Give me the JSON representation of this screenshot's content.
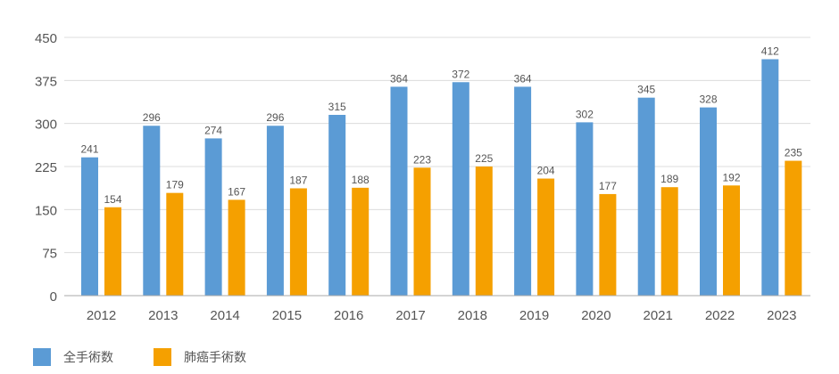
{
  "chart_data": {
    "type": "bar",
    "categories": [
      "2012",
      "2013",
      "2014",
      "2015",
      "2016",
      "2017",
      "2018",
      "2019",
      "2020",
      "2021",
      "2022",
      "2023"
    ],
    "series": [
      {
        "name": "全手術数",
        "color": "#5b9bd5",
        "values": [
          241,
          296,
          274,
          296,
          315,
          364,
          372,
          364,
          302,
          345,
          328,
          412
        ]
      },
      {
        "name": "肺癌手術数",
        "color": "#f5a000",
        "values": [
          154,
          179,
          167,
          187,
          188,
          223,
          225,
          204,
          177,
          189,
          192,
          235
        ]
      }
    ],
    "ylim": [
      0,
      450
    ],
    "yticks": [
      0,
      75,
      150,
      225,
      300,
      375,
      450
    ],
    "grid": true,
    "data_labels": true,
    "legend": "bottom-left"
  }
}
